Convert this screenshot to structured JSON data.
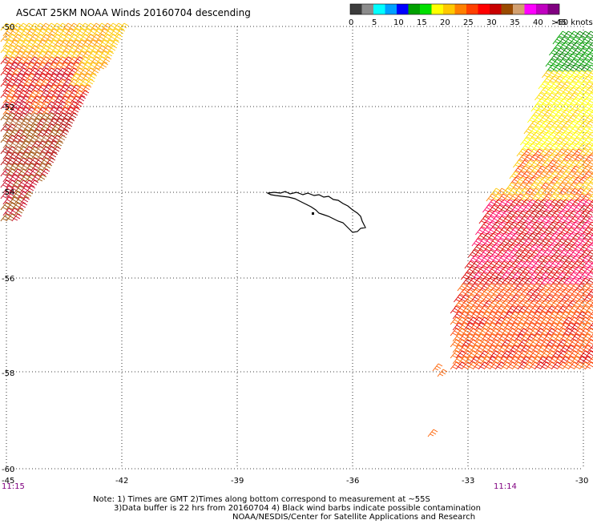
{
  "title": "ASCAT 25KM NOAA Winds 20160704 descending",
  "color_scale": {
    "colors": [
      "#3c3c3c",
      "#8c8c8c",
      "#00ffff",
      "#00a0ff",
      "#0000ff",
      "#00a000",
      "#00e000",
      "#ffff00",
      "#ffc800",
      "#ff8000",
      "#ff4000",
      "#ff0000",
      "#c80000",
      "#9a4a00",
      "#d2a070",
      "#ff00ff",
      "#c000c0",
      "#800080"
    ],
    "labels": [
      "0",
      "5",
      "10",
      "15",
      "20",
      "25",
      "30",
      "35",
      "40",
      "45"
    ],
    "unit_label": ">50 knots"
  },
  "latitude_labels": [
    "-50",
    "-52",
    "-54",
    "-56",
    "-58",
    "-60"
  ],
  "longitude_labels": [
    "-45",
    "-42",
    "-39",
    "-36",
    "-33",
    "-30"
  ],
  "times": {
    "left": "11:15",
    "right": "11:14"
  },
  "notes": [
    "Note: 1) Times are GMT 2)Times along bottom correspond to measurement at ~55S",
    "3)Data buffer is 22 hrs from 20160704 4) Black wind barbs indicate possible contamination",
    "NOAA/NESDIS/Center for Satellite Applications and Research"
  ],
  "swaths": [
    {
      "name": "western-swath",
      "dominant_colors": [
        "#ffc800",
        "#ff8000",
        "#ff0000",
        "#c80000",
        "#9a4a00"
      ]
    },
    {
      "name": "eastern-swath",
      "dominant_colors": [
        "#00a000",
        "#ffff00",
        "#ffc800",
        "#ff8000",
        "#ff4000",
        "#ff0000",
        "#c80000"
      ]
    }
  ],
  "land": {
    "name": "South Georgia",
    "fill": "none",
    "stroke": "#000000"
  }
}
